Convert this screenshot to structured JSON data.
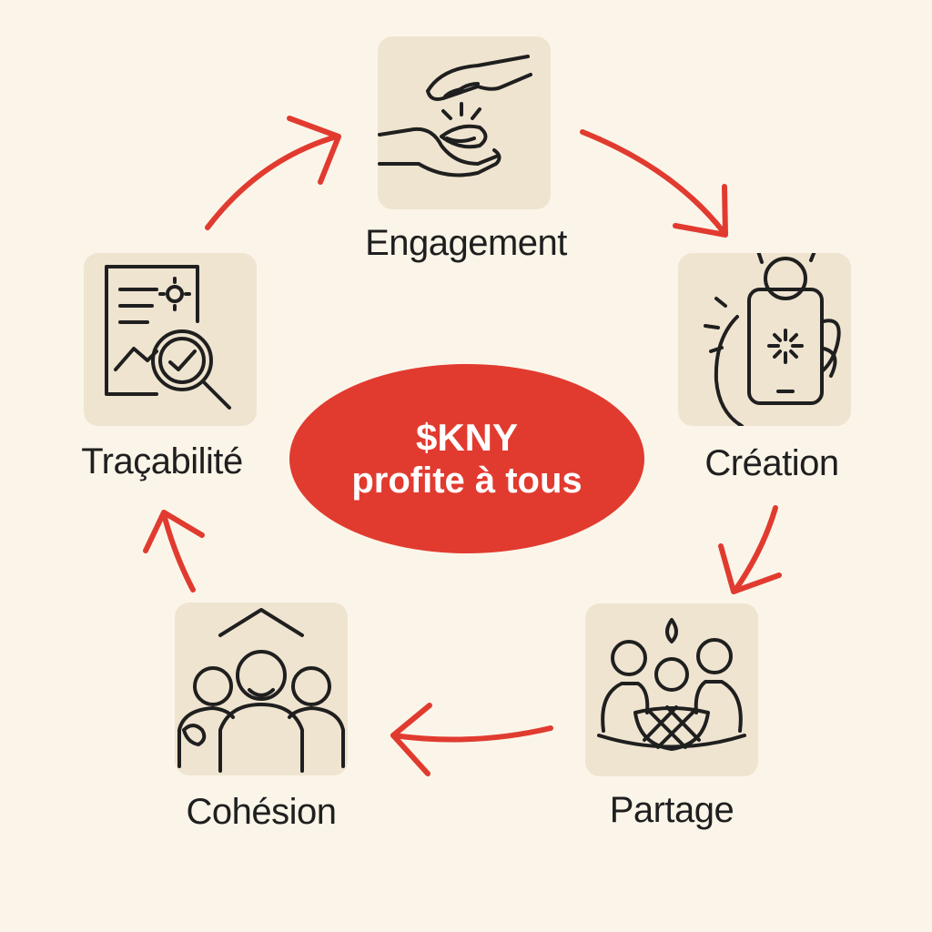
{
  "center": {
    "line1": "$KNY",
    "line2": "profite à tous"
  },
  "steps": [
    {
      "id": "engagement",
      "label": "Engagement",
      "icon": "hands-giving-gem-icon"
    },
    {
      "id": "creation",
      "label": "Création",
      "icon": "hand-holding-phone-icon"
    },
    {
      "id": "partage",
      "label": "Partage",
      "icon": "people-sharing-basket-icon"
    },
    {
      "id": "cohesion",
      "label": "Cohésion",
      "icon": "community-group-icon"
    },
    {
      "id": "tracabilite",
      "label": "Traçabilité",
      "icon": "document-magnifier-icon"
    }
  ],
  "colors": {
    "background": "#fbf5e9",
    "tile": "#efe4d0",
    "accent": "#e13b30",
    "text": "#1f1f1f",
    "center_text": "#ffffff"
  }
}
